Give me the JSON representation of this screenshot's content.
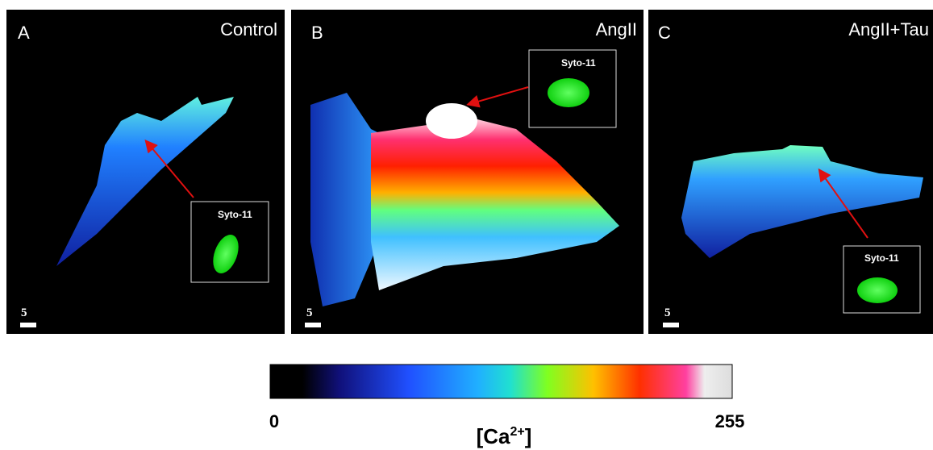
{
  "panels": [
    {
      "letter": "A",
      "label": "Control",
      "inset_label": "Syto-11",
      "scale_label": "5"
    },
    {
      "letter": "B",
      "label": "AngII",
      "inset_label": "Syto-11",
      "scale_label": "5"
    },
    {
      "letter": "C",
      "label": "AngII+Tau",
      "inset_label": "Syto-11",
      "scale_label": "5"
    }
  ],
  "colorbar": {
    "min": 0,
    "max": 255,
    "label_base": "[Ca",
    "label_sup": "2+",
    "label_end": "]"
  }
}
